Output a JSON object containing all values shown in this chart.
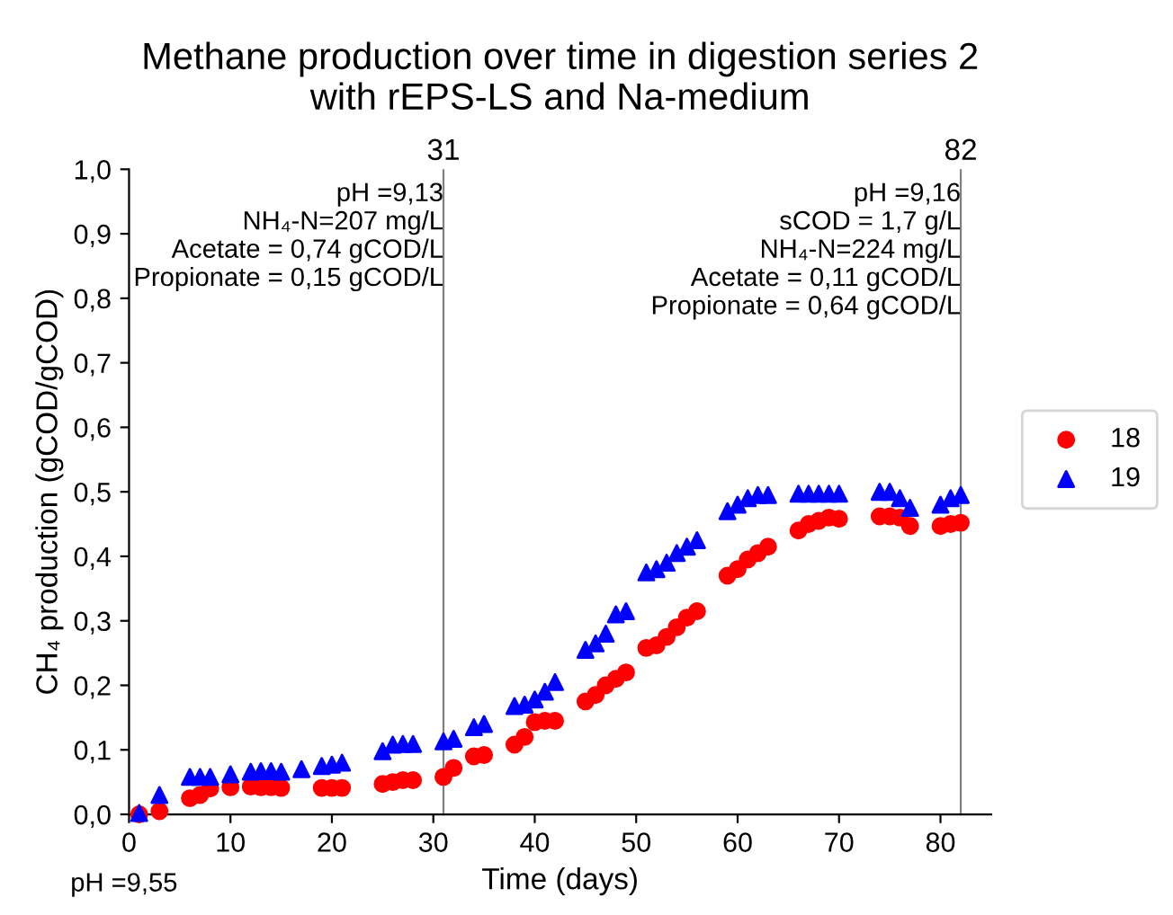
{
  "chart_data": {
    "type": "scatter",
    "title": "Methane production over time in digestion series 2\nwith rEPS-LS and Na-medium",
    "xlabel": "Time (days)",
    "ylabel": "CH₄ production (gCOD/gCOD)",
    "series": [
      {
        "name": "18",
        "color": "#ff0000",
        "marker": "circle",
        "x": [
          1,
          3,
          6,
          7,
          8,
          10,
          12,
          13,
          14,
          15,
          19,
          20,
          21,
          25,
          26,
          27,
          28,
          31,
          32,
          34,
          35,
          38,
          39,
          40,
          41,
          42,
          45,
          46,
          47,
          48,
          49,
          51,
          52,
          53,
          54,
          55,
          56,
          59,
          60,
          61,
          62,
          63,
          66,
          67,
          68,
          69,
          70,
          74,
          75,
          76,
          77,
          80,
          81,
          82
        ],
        "values": [
          0.0,
          0.005,
          0.025,
          0.03,
          0.04,
          0.042,
          0.043,
          0.042,
          0.042,
          0.041,
          0.041,
          0.041,
          0.041,
          0.047,
          0.05,
          0.053,
          0.053,
          0.058,
          0.072,
          0.09,
          0.092,
          0.108,
          0.12,
          0.143,
          0.145,
          0.145,
          0.175,
          0.185,
          0.2,
          0.21,
          0.22,
          0.258,
          0.262,
          0.275,
          0.29,
          0.305,
          0.315,
          0.37,
          0.38,
          0.395,
          0.405,
          0.415,
          0.44,
          0.45,
          0.455,
          0.46,
          0.458,
          0.462,
          0.462,
          0.46,
          0.447,
          0.447,
          0.45,
          0.452
        ]
      },
      {
        "name": "19",
        "color": "#0000ff",
        "marker": "triangle",
        "x": [
          1,
          3,
          6,
          7,
          8,
          10,
          12,
          13,
          14,
          15,
          17,
          19,
          20,
          21,
          25,
          26,
          27,
          28,
          31,
          32,
          34,
          35,
          38,
          39,
          40,
          41,
          42,
          45,
          46,
          47,
          48,
          49,
          51,
          52,
          53,
          54,
          55,
          56,
          59,
          60,
          61,
          62,
          63,
          66,
          67,
          68,
          69,
          70,
          74,
          75,
          76,
          77,
          80,
          81,
          82
        ],
        "values": [
          0.002,
          0.03,
          0.058,
          0.058,
          0.058,
          0.062,
          0.066,
          0.067,
          0.067,
          0.066,
          0.07,
          0.075,
          0.077,
          0.08,
          0.098,
          0.108,
          0.109,
          0.109,
          0.113,
          0.117,
          0.135,
          0.14,
          0.168,
          0.17,
          0.178,
          0.19,
          0.205,
          0.255,
          0.265,
          0.28,
          0.31,
          0.315,
          0.375,
          0.38,
          0.39,
          0.405,
          0.415,
          0.425,
          0.47,
          0.48,
          0.49,
          0.495,
          0.495,
          0.497,
          0.497,
          0.497,
          0.497,
          0.497,
          0.5,
          0.5,
          0.49,
          0.475,
          0.48,
          0.49,
          0.495
        ]
      }
    ],
    "xlim": [
      0,
      85
    ],
    "xticks": [
      0,
      10,
      20,
      30,
      40,
      50,
      60,
      70,
      80
    ],
    "ylim": [
      0,
      1
    ],
    "yticks": [
      {
        "value": 0,
        "label": "0,0"
      },
      {
        "value": 0.1,
        "label": "0,1"
      },
      {
        "value": 0.2,
        "label": "0,2"
      },
      {
        "value": 0.3,
        "label": "0,3"
      },
      {
        "value": 0.4,
        "label": "0,4"
      },
      {
        "value": 0.5,
        "label": "0,5"
      },
      {
        "value": 0.6,
        "label": "0,6"
      },
      {
        "value": 0.7,
        "label": "0,7"
      },
      {
        "value": 0.8,
        "label": "0,8"
      },
      {
        "value": 0.9,
        "label": "0,9"
      },
      {
        "value": 1,
        "label": "1,0"
      }
    ],
    "ref_lines": [
      {
        "axis": "x",
        "value": 31,
        "label": "31",
        "color": "#808080"
      },
      {
        "axis": "x",
        "value": 82,
        "label": "82",
        "color": "#808080"
      }
    ],
    "annotations": [
      {
        "text": "pH =9,13\nNH₄-N=207 mg/L\nAcetate = 0,74 gCOD/L\nPropionate = 0,15 gCOD/L",
        "x": 31,
        "y": 0.98
      },
      {
        "text": "pH =9,16\nsCOD = 1,7 g/L\nNH₄-N=224 mg/L\nAcetate = 0,11 gCOD/L\nPropionate = 0,64 gCOD/L",
        "x": 82,
        "y": 0.98
      },
      "pH =9,55"
    ],
    "legend": "right",
    "grid": false
  }
}
